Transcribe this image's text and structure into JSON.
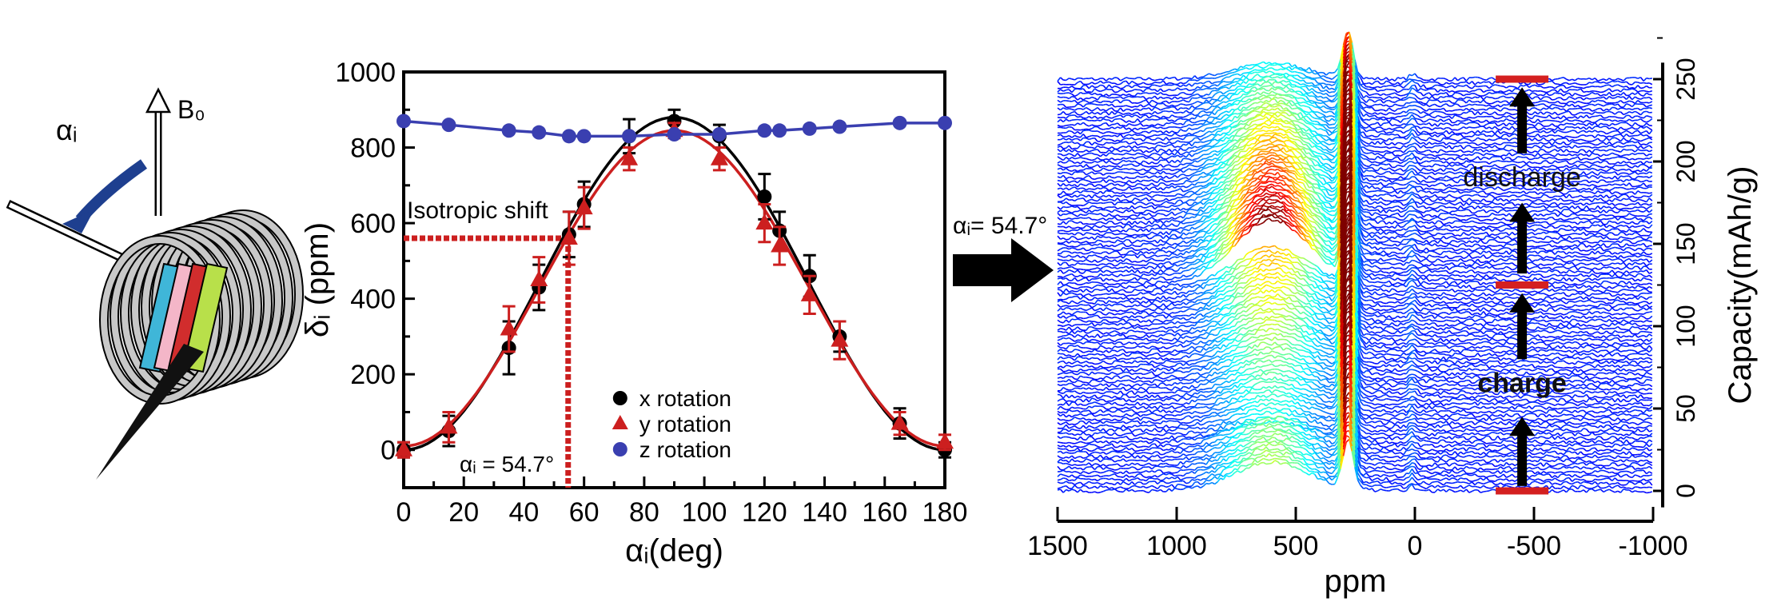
{
  "illustration": {
    "field_label": "B₀",
    "angle_label": "αᵢ"
  },
  "chart_data": [
    {
      "type": "scatter",
      "xlabel": "αᵢ(deg)",
      "ylabel": "δᵢ (ppm)",
      "xlim": [
        0,
        180
      ],
      "ylim": [
        -100,
        1000
      ],
      "xticks": [
        "0",
        "20",
        "40",
        "60",
        "80",
        "100",
        "120",
        "140",
        "160",
        "180"
      ],
      "yticks": [
        "0",
        "200",
        "400",
        "600",
        "800",
        "1000"
      ],
      "annotations": {
        "isotropic": "Isotropic shift",
        "magic_angle": "αᵢ = 54.7°",
        "magic_angle_value": 54.7,
        "isotropic_value": 560
      },
      "legend_placement": "bottom-right",
      "series": [
        {
          "name": "x rotation",
          "marker": "circle",
          "color": "#000000",
          "x": [
            0,
            15,
            35,
            45,
            55,
            60,
            75,
            90,
            105,
            120,
            125,
            135,
            145,
            165,
            180
          ],
          "y": [
            0,
            50,
            270,
            430,
            570,
            650,
            830,
            870,
            830,
            670,
            580,
            460,
            300,
            70,
            0
          ],
          "err": [
            20,
            40,
            70,
            60,
            60,
            60,
            45,
            30,
            30,
            60,
            50,
            55,
            40,
            40,
            20
          ]
        },
        {
          "name": "y rotation",
          "marker": "triangle",
          "color": "#cc1f1f",
          "x": [
            0,
            15,
            35,
            45,
            55,
            60,
            75,
            90,
            105,
            120,
            125,
            135,
            145,
            165,
            180
          ],
          "y": [
            0,
            60,
            320,
            450,
            560,
            640,
            770,
            845,
            770,
            600,
            540,
            410,
            290,
            70,
            20
          ],
          "err": [
            20,
            40,
            60,
            60,
            70,
            55,
            30,
            20,
            30,
            50,
            50,
            50,
            50,
            30,
            20
          ]
        },
        {
          "name": "z rotation",
          "marker": "circle",
          "color": "#3a3fb0",
          "x": [
            0,
            15,
            35,
            45,
            55,
            60,
            75,
            90,
            105,
            120,
            125,
            135,
            145,
            165,
            180
          ],
          "y": [
            870,
            860,
            845,
            840,
            830,
            830,
            830,
            835,
            835,
            845,
            845,
            850,
            855,
            865,
            865
          ]
        }
      ]
    },
    {
      "type": "line",
      "xlabel": "ppm",
      "ylabel": "Capacity(mAh/g)",
      "xlim": [
        1500,
        -1000
      ],
      "ylim": [
        0,
        250
      ],
      "xticks": [
        "1500",
        "1000",
        "500",
        "0",
        "-500",
        "-1000"
      ],
      "yticks": [
        "0",
        "50",
        "100",
        "150",
        "200",
        "250"
      ],
      "annotations": {
        "angle": "αᵢ= 54.7°",
        "discharge": "discharge",
        "charge": "charge"
      },
      "markers_capacity": [
        0,
        125,
        250
      ],
      "colormap": "jet"
    }
  ]
}
